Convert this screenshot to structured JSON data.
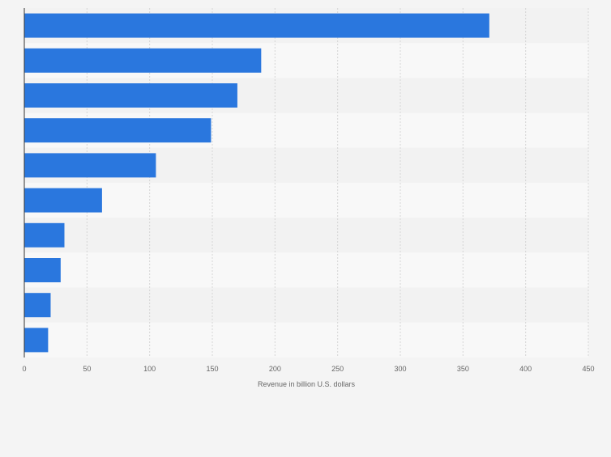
{
  "chart_data": {
    "type": "bar",
    "orientation": "horizontal",
    "categories": [
      "",
      "",
      "",
      "",
      "",
      "",
      "",
      "",
      "",
      ""
    ],
    "values": [
      371,
      189,
      170,
      149,
      105,
      62,
      32,
      29,
      21,
      19
    ],
    "title": "",
    "xlabel": "Revenue in billion U.S. dollars",
    "ylabel": "",
    "xlim": [
      0,
      450
    ],
    "xticks": [
      0,
      50,
      100,
      150,
      200,
      250,
      300,
      350,
      400,
      450
    ],
    "grid": true,
    "bar_color": "#2a77de",
    "band_colors": [
      "#f2f2f2",
      "#f8f8f8"
    ],
    "background_color": "#f4f4f4"
  }
}
